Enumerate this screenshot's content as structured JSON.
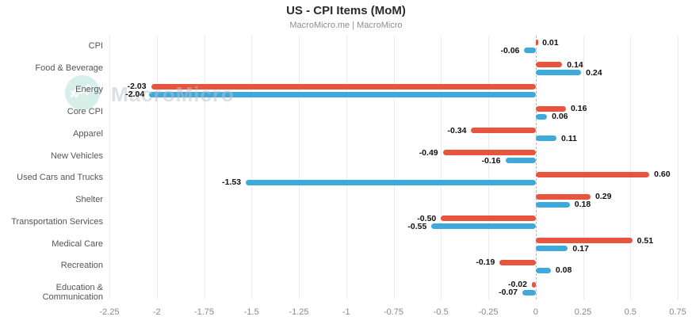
{
  "title": "US - CPI Items (MoM)",
  "subtitle": "MacroMicro.me | MacroMicro",
  "watermark": {
    "text": "MacroMicro",
    "circle_color": "#d6efe8",
    "icon": "macromicro-logo-icon"
  },
  "colors": {
    "series_red": "#e8553f",
    "series_blue": "#3fa9dc",
    "gridline": "#ececec",
    "zero_line": "#b8b8b8",
    "value_label": "#111111",
    "category_label": "#555555",
    "tick_label": "#888888"
  },
  "chart_data": {
    "type": "bar",
    "orientation": "horizontal",
    "title": "US - CPI Items (MoM)",
    "subtitle": "MacroMicro.me | MacroMicro",
    "categories": [
      "CPI",
      "Food & Beverage",
      "Energy",
      "Core CPI",
      "Apparel",
      "New Vehicles",
      "Used Cars and Trucks",
      "Shelter",
      "Transportation Services",
      "Medical Care",
      "Recreation",
      "Education & Communication"
    ],
    "series": [
      {
        "name": "series-red",
        "color": "#e8553f",
        "values": [
          0.01,
          0.14,
          -2.03,
          0.16,
          -0.34,
          -0.49,
          0.6,
          0.29,
          -0.5,
          0.51,
          -0.19,
          -0.02
        ],
        "labels": [
          "0.01",
          "0.14",
          "-2.03",
          "0.16",
          "-0.34",
          "-0.49",
          "0.60",
          "0.29",
          "-0.50",
          "0.51",
          "-0.19",
          "-0.02"
        ]
      },
      {
        "name": "series-blue",
        "color": "#3fa9dc",
        "values": [
          -0.06,
          0.24,
          -2.04,
          0.06,
          0.11,
          -0.16,
          -1.53,
          0.18,
          -0.55,
          0.17,
          0.08,
          -0.07
        ],
        "labels": [
          "-0.06",
          "0.24",
          "-2.04",
          "0.06",
          "0.11",
          "-0.16",
          "-1.53",
          "0.18",
          "-0.55",
          "0.17",
          "0.08",
          "-0.07"
        ]
      }
    ],
    "xlim": [
      -2.25,
      0.75
    ],
    "xticks": [
      -2.25,
      -2,
      -1.75,
      -1.5,
      -1.25,
      -1,
      -0.75,
      -0.5,
      -0.25,
      0,
      0.25,
      0.5,
      0.75
    ],
    "xtick_labels": [
      "-2.25",
      "-2",
      "-1.75",
      "-1.5",
      "-1.25",
      "-1",
      "-0.75",
      "-0.5",
      "-0.25",
      "0",
      "0.25",
      "0.5",
      "0.75"
    ],
    "grid": true,
    "legend": false
  }
}
